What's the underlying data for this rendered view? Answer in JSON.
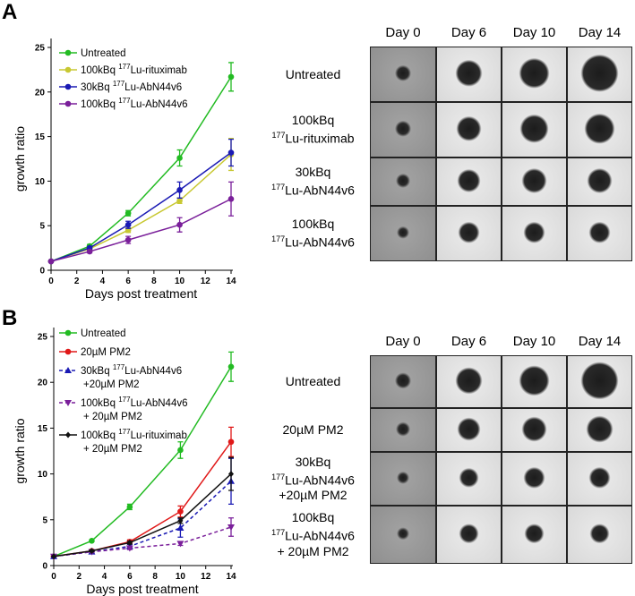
{
  "panels": [
    {
      "label": "A"
    },
    {
      "label": "B"
    }
  ],
  "chart_data": [
    {
      "type": "line",
      "panel": "A",
      "xlabel": "Days post treatment",
      "ylabel": "growth ratio",
      "xlim": [
        0,
        14
      ],
      "ylim": [
        0,
        25
      ],
      "xticks": [
        0,
        2,
        4,
        6,
        8,
        10,
        12,
        14
      ],
      "yticks": [
        0,
        5,
        10,
        15,
        20,
        25
      ],
      "x": [
        0,
        3,
        6,
        10,
        14
      ],
      "legend": "top-left",
      "grid": false,
      "series": [
        {
          "name": "Untreated",
          "color": "#22bb22",
          "marker": "circle",
          "dash": false,
          "values": [
            1,
            2.7,
            6.4,
            12.6,
            21.7
          ],
          "err": [
            0,
            0.2,
            0.3,
            0.9,
            1.6
          ]
        },
        {
          "name": "100kBq ",
          "sup": "177",
          "name2": "Lu-rituximab",
          "color": "#c8c832",
          "marker": "circle",
          "dash": false,
          "values": [
            1,
            2.4,
            4.5,
            7.8,
            13.0
          ],
          "err": [
            0,
            0.15,
            0.25,
            0.3,
            1.8
          ]
        },
        {
          "name": "30kBq ",
          "sup": "177",
          "name2": "Lu-AbN44v6",
          "color": "#1a1ab4",
          "marker": "circle",
          "dash": false,
          "values": [
            1,
            2.5,
            5.1,
            9.0,
            13.2
          ],
          "err": [
            0,
            0.15,
            0.4,
            0.9,
            1.5
          ]
        },
        {
          "name": "100kBq ",
          "sup": "177",
          "name2": "Lu-AbN44v6",
          "color": "#7a1f9a",
          "marker": "circle",
          "dash": false,
          "values": [
            1,
            2.1,
            3.4,
            5.1,
            8.0
          ],
          "err": [
            0,
            0.15,
            0.4,
            0.8,
            1.9
          ]
        }
      ]
    },
    {
      "type": "line",
      "panel": "B",
      "xlabel": "Days post treatment",
      "ylabel": "growth ratio",
      "xlim": [
        0,
        14
      ],
      "ylim": [
        0,
        25
      ],
      "xticks": [
        0,
        2,
        4,
        6,
        8,
        10,
        12,
        14
      ],
      "yticks": [
        0,
        5,
        10,
        15,
        20,
        25
      ],
      "x": [
        0,
        3,
        6,
        10,
        14
      ],
      "legend": "top-left",
      "grid": false,
      "series": [
        {
          "name": "Untreated",
          "color": "#22bb22",
          "marker": "circle",
          "dash": false,
          "values": [
            1,
            2.7,
            6.4,
            12.6,
            21.7
          ],
          "err": [
            0,
            0.1,
            0.3,
            0.9,
            1.6
          ]
        },
        {
          "name": "20µM PM2",
          "color": "#e01818",
          "marker": "circle",
          "dash": false,
          "values": [
            1,
            1.6,
            2.6,
            5.9,
            13.5
          ],
          "err": [
            0,
            0.1,
            0.2,
            0.6,
            1.6
          ]
        },
        {
          "name": "30kBq ",
          "sup": "177",
          "name2": "Lu-AbN44v6",
          "line2": "+20µM PM2",
          "color": "#1a1ab4",
          "marker": "triangle-up",
          "dash": true,
          "values": [
            1,
            1.5,
            2.1,
            4.1,
            9.2
          ],
          "err": [
            0,
            0.1,
            0.2,
            1.0,
            2.5
          ]
        },
        {
          "name": "100kBq ",
          "sup": "177",
          "name2": "Lu-AbN44v6",
          "line2": "+ 20µM PM2",
          "color": "#7a1f9a",
          "marker": "triangle-down",
          "dash": true,
          "values": [
            1,
            1.5,
            1.9,
            2.4,
            4.2
          ],
          "err": [
            0,
            0.1,
            0.15,
            0.2,
            1.0
          ]
        },
        {
          "name": "100kBq ",
          "sup": "177",
          "name2": "Lu-rituximab",
          "line2": "+ 20µM PM2",
          "color": "#111111",
          "marker": "diamond",
          "dash": false,
          "values": [
            1,
            1.6,
            2.5,
            4.9,
            10.0
          ],
          "err": [
            0,
            0.1,
            0.15,
            0.3,
            1.8
          ]
        }
      ]
    }
  ],
  "grids": [
    {
      "columns": [
        "Day 0",
        "Day 6",
        "Day 10",
        "Day 14"
      ],
      "rows": [
        [
          "Untreated"
        ],
        [
          "100kBq",
          "177Lu-rituximab"
        ],
        [
          "30kBq",
          "177Lu-AbN44v6"
        ],
        [
          "100kBq",
          "177Lu-AbN44v6"
        ]
      ]
    },
    {
      "columns": [
        "Day 0",
        "Day 6",
        "Day 10",
        "Day 14"
      ],
      "rows": [
        [
          "Untreated"
        ],
        [
          "20µM PM2"
        ],
        [
          "30kBq",
          "177Lu-AbN44v6",
          "+20µM PM2"
        ],
        [
          "100kBq",
          "177Lu-AbN44v6",
          "+ 20µM PM2"
        ]
      ]
    }
  ]
}
